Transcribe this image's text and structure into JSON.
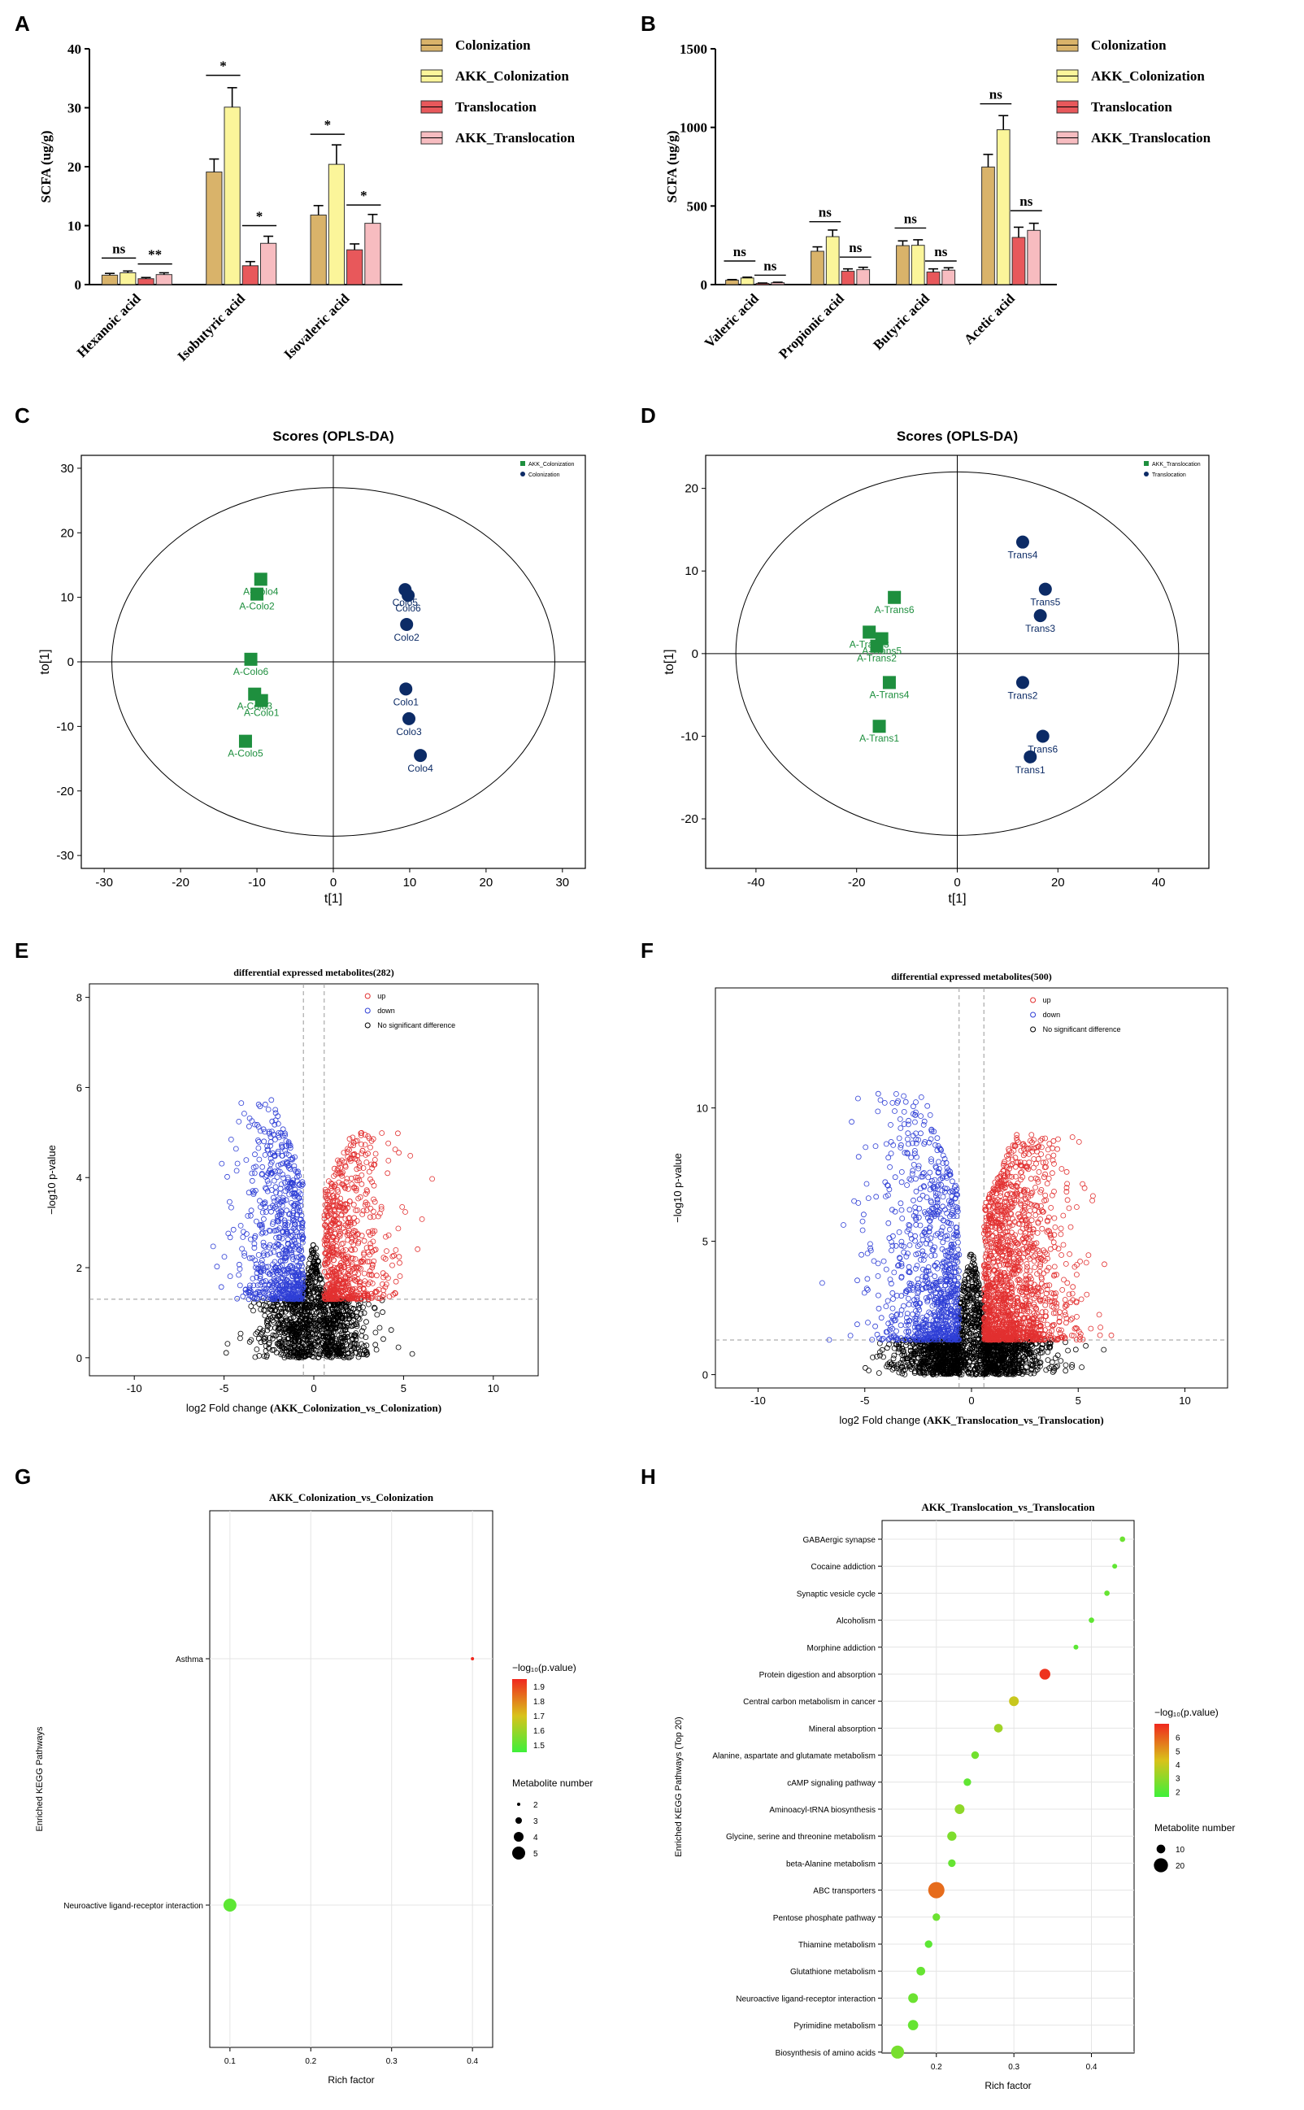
{
  "colors": {
    "colonization": "#d9b36a",
    "akk_colonization": "#fbf59a",
    "translocation": "#e8585b",
    "akk_translocation": "#f7bcc0",
    "opls_square": "#1e8f3e",
    "opls_circle": "#0c2b66",
    "volcano_up": "#e23030",
    "volcano_down": "#2f3fd6",
    "volcano_ns": "#000000",
    "scale_high": "#f0281e",
    "scale_mid": "#d9c21a",
    "scale_low": "#3ef03a"
  },
  "panel_labels": [
    "A",
    "B",
    "C",
    "D",
    "E",
    "F",
    "G",
    "H"
  ],
  "chart_data": [
    {
      "id": "A",
      "type": "bar",
      "title": "",
      "xlabel": "",
      "ylabel": "SCFA  (ug/g)",
      "ylim": [
        0,
        40
      ],
      "yticks": [
        "0",
        "10",
        "20",
        "30",
        "40"
      ],
      "categories": [
        "Hexanoic acid",
        "Isobutyric acid",
        "Isovaleric acid"
      ],
      "series": [
        {
          "name": "Colonization",
          "values": [
            1.6,
            19.1,
            11.8
          ],
          "err": [
            0.3,
            2.2,
            1.6
          ]
        },
        {
          "name": "AKK_Colonization",
          "values": [
            2.0,
            30.1,
            20.4
          ],
          "err": [
            0.3,
            3.3,
            3.3
          ]
        },
        {
          "name": "Translocation",
          "values": [
            1.0,
            3.2,
            5.9
          ],
          "err": [
            0.2,
            0.7,
            1.0
          ]
        },
        {
          "name": "AKK_Translocation",
          "values": [
            1.7,
            7.0,
            10.4
          ],
          "err": [
            0.3,
            1.2,
            1.5
          ]
        }
      ],
      "significance": [
        {
          "category": 0,
          "pair": "colonization",
          "label": "ns",
          "y": 4.5
        },
        {
          "category": 0,
          "pair": "translocation",
          "label": "**",
          "y": 3.5
        },
        {
          "category": 1,
          "pair": "colonization",
          "label": "*",
          "y": 35.5
        },
        {
          "category": 1,
          "pair": "translocation",
          "label": "*",
          "y": 10.0
        },
        {
          "category": 2,
          "pair": "colonization",
          "label": "*",
          "y": 25.5
        },
        {
          "category": 2,
          "pair": "translocation",
          "label": "*",
          "y": 13.5
        }
      ],
      "legend": [
        "Colonization",
        "AKK_Colonization",
        "Translocation",
        "AKK_Translocation"
      ]
    },
    {
      "id": "B",
      "type": "bar",
      "title": "",
      "xlabel": "",
      "ylabel": "SCFA  (ug/g)",
      "ylim": [
        0,
        1500
      ],
      "yticks": [
        "0",
        "500",
        "1000",
        "1500"
      ],
      "categories": [
        "Valeric acid",
        "Propionic acid",
        "Butyric acid",
        "Acetic acid"
      ],
      "series": [
        {
          "name": "Colonization",
          "values": [
            28,
            212,
            248,
            748
          ],
          "err": [
            4,
            28,
            30,
            80
          ]
        },
        {
          "name": "AKK_Colonization",
          "values": [
            42,
            305,
            250,
            985
          ],
          "err": [
            5,
            42,
            35,
            90
          ]
        },
        {
          "name": "Translocation",
          "values": [
            8,
            85,
            80,
            300
          ],
          "err": [
            2,
            15,
            20,
            65
          ]
        },
        {
          "name": "AKK_Translocation",
          "values": [
            12,
            95,
            92,
            345
          ],
          "err": [
            3,
            15,
            15,
            45
          ]
        }
      ],
      "significance": [
        {
          "category": 0,
          "pair": "colonization",
          "label": "ns",
          "y": 150
        },
        {
          "category": 0,
          "pair": "translocation",
          "label": "ns",
          "y": 60
        },
        {
          "category": 1,
          "pair": "colonization",
          "label": "ns",
          "y": 400
        },
        {
          "category": 1,
          "pair": "translocation",
          "label": "ns",
          "y": 175
        },
        {
          "category": 2,
          "pair": "colonization",
          "label": "ns",
          "y": 360
        },
        {
          "category": 2,
          "pair": "translocation",
          "label": "ns",
          "y": 150
        },
        {
          "category": 3,
          "pair": "colonization",
          "label": "ns",
          "y": 1150
        },
        {
          "category": 3,
          "pair": "translocation",
          "label": "ns",
          "y": 470
        }
      ],
      "legend": [
        "Colonization",
        "AKK_Colonization",
        "Translocation",
        "AKK_Translocation"
      ]
    },
    {
      "id": "C",
      "type": "scatter",
      "title": "Scores (OPLS-DA)",
      "xlabel": "t[1]",
      "ylabel": "to[1]",
      "xlim": [
        -33,
        33
      ],
      "ylim": [
        -32,
        32
      ],
      "xticks": [
        "-30",
        "-20",
        "-10",
        "0",
        "10",
        "20",
        "30"
      ],
      "yticks": [
        "-30",
        "-20",
        "-10",
        "0",
        "10",
        "20",
        "30"
      ],
      "legend": [
        "AKK_Colonization",
        "Colonization"
      ],
      "ellipse": {
        "cx": 0,
        "cy": 0,
        "rx": 29,
        "ry": 27
      },
      "groups": [
        {
          "name": "AKK_Colonization",
          "marker": "square",
          "points": [
            {
              "label": "A-Colo4",
              "x": -9.5,
              "y": 12.8
            },
            {
              "label": "A-Colo2",
              "x": -10.0,
              "y": 10.5
            },
            {
              "label": "A-Colo6",
              "x": -10.8,
              "y": 0.4
            },
            {
              "label": "A-Colo3",
              "x": -10.3,
              "y": -5.0
            },
            {
              "label": "A-Colo1",
              "x": -9.4,
              "y": -6.0
            },
            {
              "label": "A-Colo5",
              "x": -11.5,
              "y": -12.3
            }
          ]
        },
        {
          "name": "Colonization",
          "marker": "circle",
          "points": [
            {
              "label": "Colo5",
              "x": 9.4,
              "y": 11.2
            },
            {
              "label": "Colo6",
              "x": 9.8,
              "y": 10.3
            },
            {
              "label": "Colo2",
              "x": 9.6,
              "y": 5.8
            },
            {
              "label": "Colo1",
              "x": 9.5,
              "y": -4.2
            },
            {
              "label": "Colo3",
              "x": 9.9,
              "y": -8.8
            },
            {
              "label": "Colo4",
              "x": 11.4,
              "y": -14.5
            }
          ]
        }
      ]
    },
    {
      "id": "D",
      "type": "scatter",
      "title": "Scores (OPLS-DA)",
      "xlabel": "t[1]",
      "ylabel": "to[1]",
      "xlim": [
        -50,
        50
      ],
      "ylim": [
        -26,
        24
      ],
      "xticks": [
        "-40",
        "-20",
        "0",
        "20",
        "40"
      ],
      "yticks": [
        "-20",
        "-10",
        "0",
        "10",
        "20"
      ],
      "legend": [
        "AKK_Translocation",
        "Translocation"
      ],
      "ellipse": {
        "cx": 0,
        "cy": 0,
        "rx": 44,
        "ry": 22
      },
      "groups": [
        {
          "name": "AKK_Translocation",
          "marker": "square",
          "points": [
            {
              "label": "A-Trans6",
              "x": -12.5,
              "y": 6.8
            },
            {
              "label": "A-Trans3",
              "x": -17.5,
              "y": 2.6
            },
            {
              "label": "A-Trans5",
              "x": -15.0,
              "y": 1.8
            },
            {
              "label": "A-Trans2",
              "x": -16.0,
              "y": 0.9
            },
            {
              "label": "A-Trans4",
              "x": -13.5,
              "y": -3.5
            },
            {
              "label": "A-Trans1",
              "x": -15.5,
              "y": -8.8
            }
          ]
        },
        {
          "name": "Translocation",
          "marker": "circle",
          "points": [
            {
              "label": "Trans4",
              "x": 13.0,
              "y": 13.5
            },
            {
              "label": "Trans5",
              "x": 17.5,
              "y": 7.8
            },
            {
              "label": "Trans3",
              "x": 16.5,
              "y": 4.6
            },
            {
              "label": "Trans2",
              "x": 13.0,
              "y": -3.5
            },
            {
              "label": "Trans6",
              "x": 17.0,
              "y": -10.0
            },
            {
              "label": "Trans1",
              "x": 14.5,
              "y": -12.5
            }
          ]
        }
      ]
    },
    {
      "id": "E",
      "type": "scatter",
      "title": "differential expressed metabolites(282)",
      "xlabel": "log2 Fold change",
      "xlabel_suffix": "(AKK_Colonization_vs_Colonization)",
      "ylabel": "−log10 p-value",
      "xlim": [
        -12.5,
        12.5
      ],
      "ylim": [
        -0.4,
        8.3
      ],
      "xticks": [
        "-10",
        "-5",
        "0",
        "5",
        "10"
      ],
      "yticks": [
        "0",
        "2",
        "4",
        "6",
        "8"
      ],
      "legend": [
        "up",
        "down",
        "No significant difference"
      ],
      "thresholds": {
        "fc": [
          -0.58,
          0.58
        ],
        "p": 1.3
      },
      "point_count": {
        "up": 700,
        "down": 700,
        "ns": 1100
      },
      "spread": {
        "x": 1.6,
        "y_max": 5.0
      }
    },
    {
      "id": "F",
      "type": "scatter",
      "title": "differential expressed metabolites(500)",
      "xlabel": "log2 Fold change",
      "xlabel_suffix": "(AKK_Translocation_vs_Translocation)",
      "ylabel": "−log10 p-value",
      "xlim": [
        -12,
        12
      ],
      "ylim": [
        -0.5,
        14.5
      ],
      "xticks": [
        "-10",
        "-5",
        "0",
        "5",
        "10"
      ],
      "yticks": [
        "0",
        "5",
        "10"
      ],
      "legend": [
        "up",
        "down",
        "No significant difference"
      ],
      "thresholds": {
        "fc": [
          -0.58,
          0.58
        ],
        "p": 1.3
      },
      "point_count": {
        "up": 1500,
        "down": 900,
        "ns": 1700
      },
      "spread": {
        "x": 1.8,
        "y_max": 9.0
      }
    },
    {
      "id": "G",
      "type": "scatter",
      "title": "AKK_Colonization_vs_Colonization",
      "xlabel": "Rich factor",
      "ylabel": "Enriched KEGG Pathways",
      "xlim": [
        0.075,
        0.425
      ],
      "xticks": [
        "0.1",
        "0.2",
        "0.3",
        "0.4"
      ],
      "pathways": [
        {
          "name": "Asthma",
          "rich_factor": 0.4,
          "neg_log10_p": 1.95,
          "count": 2
        },
        {
          "name": "Neuroactive ligand-receptor interaction",
          "rich_factor": 0.1,
          "neg_log10_p": 1.5,
          "count": 5
        }
      ],
      "colorbar": {
        "title": "−log₁₀(p.value)",
        "min": 1.45,
        "max": 1.95,
        "ticks": [
          "1.9",
          "1.8",
          "1.7",
          "1.6",
          "1.5"
        ]
      },
      "size_legend": {
        "title": "Metabolite number",
        "values": [
          "2",
          "3",
          "4",
          "5"
        ]
      }
    },
    {
      "id": "H",
      "type": "scatter",
      "title": "AKK_Translocation_vs_Translocation",
      "xlabel": "Rich factor",
      "ylabel": "Enriched KEGG Pathways (Top 20)",
      "xlim": [
        0.13,
        0.455
      ],
      "xticks": [
        "0.2",
        "0.3",
        "0.4"
      ],
      "pathways": [
        {
          "name": "GABAergic synapse",
          "rich_factor": 0.44,
          "neg_log10_p": 2.4,
          "count": 4
        },
        {
          "name": "Cocaine addiction",
          "rich_factor": 0.43,
          "neg_log10_p": 2.2,
          "count": 3
        },
        {
          "name": "Synaptic vesicle cycle",
          "rich_factor": 0.42,
          "neg_log10_p": 2.3,
          "count": 4
        },
        {
          "name": "Alcoholism",
          "rich_factor": 0.4,
          "neg_log10_p": 2.2,
          "count": 4
        },
        {
          "name": "Morphine addiction",
          "rich_factor": 0.38,
          "neg_log10_p": 2.1,
          "count": 3
        },
        {
          "name": "Protein digestion and absorption",
          "rich_factor": 0.34,
          "neg_log10_p": 6.8,
          "count": 14
        },
        {
          "name": "Central carbon metabolism in cancer",
          "rich_factor": 0.3,
          "neg_log10_p": 4.0,
          "count": 12
        },
        {
          "name": "Mineral absorption",
          "rich_factor": 0.28,
          "neg_log10_p": 3.3,
          "count": 10
        },
        {
          "name": "Alanine, aspartate and glutamate metabolism",
          "rich_factor": 0.25,
          "neg_log10_p": 2.5,
          "count": 8
        },
        {
          "name": "cAMP signaling pathway",
          "rich_factor": 0.24,
          "neg_log10_p": 2.2,
          "count": 8
        },
        {
          "name": "Aminoacyl-tRNA biosynthesis",
          "rich_factor": 0.23,
          "neg_log10_p": 3.0,
          "count": 12
        },
        {
          "name": "Glycine, serine and threonine metabolism",
          "rich_factor": 0.22,
          "neg_log10_p": 2.7,
          "count": 11
        },
        {
          "name": "beta-Alanine metabolism",
          "rich_factor": 0.22,
          "neg_log10_p": 2.3,
          "count": 8
        },
        {
          "name": "ABC transporters",
          "rich_factor": 0.2,
          "neg_log10_p": 5.8,
          "count": 24
        },
        {
          "name": "Pentose phosphate pathway",
          "rich_factor": 0.2,
          "neg_log10_p": 2.4,
          "count": 8
        },
        {
          "name": "Thiamine metabolism",
          "rich_factor": 0.19,
          "neg_log10_p": 2.1,
          "count": 8
        },
        {
          "name": "Glutathione metabolism",
          "rich_factor": 0.18,
          "neg_log10_p": 2.3,
          "count": 10
        },
        {
          "name": "Neuroactive ligand-receptor interaction",
          "rich_factor": 0.17,
          "neg_log10_p": 2.4,
          "count": 12
        },
        {
          "name": "Pyrimidine metabolism",
          "rich_factor": 0.17,
          "neg_log10_p": 2.3,
          "count": 13
        },
        {
          "name": "Biosynthesis of amino acids",
          "rich_factor": 0.15,
          "neg_log10_p": 2.6,
          "count": 18
        }
      ],
      "colorbar": {
        "title": "−log₁₀(p.value)",
        "min": 1.6,
        "max": 7.0,
        "ticks": [
          "6",
          "5",
          "4",
          "3",
          "2"
        ]
      },
      "size_legend": {
        "title": "Metabolite number",
        "values": [
          "10",
          "20"
        ]
      }
    }
  ]
}
